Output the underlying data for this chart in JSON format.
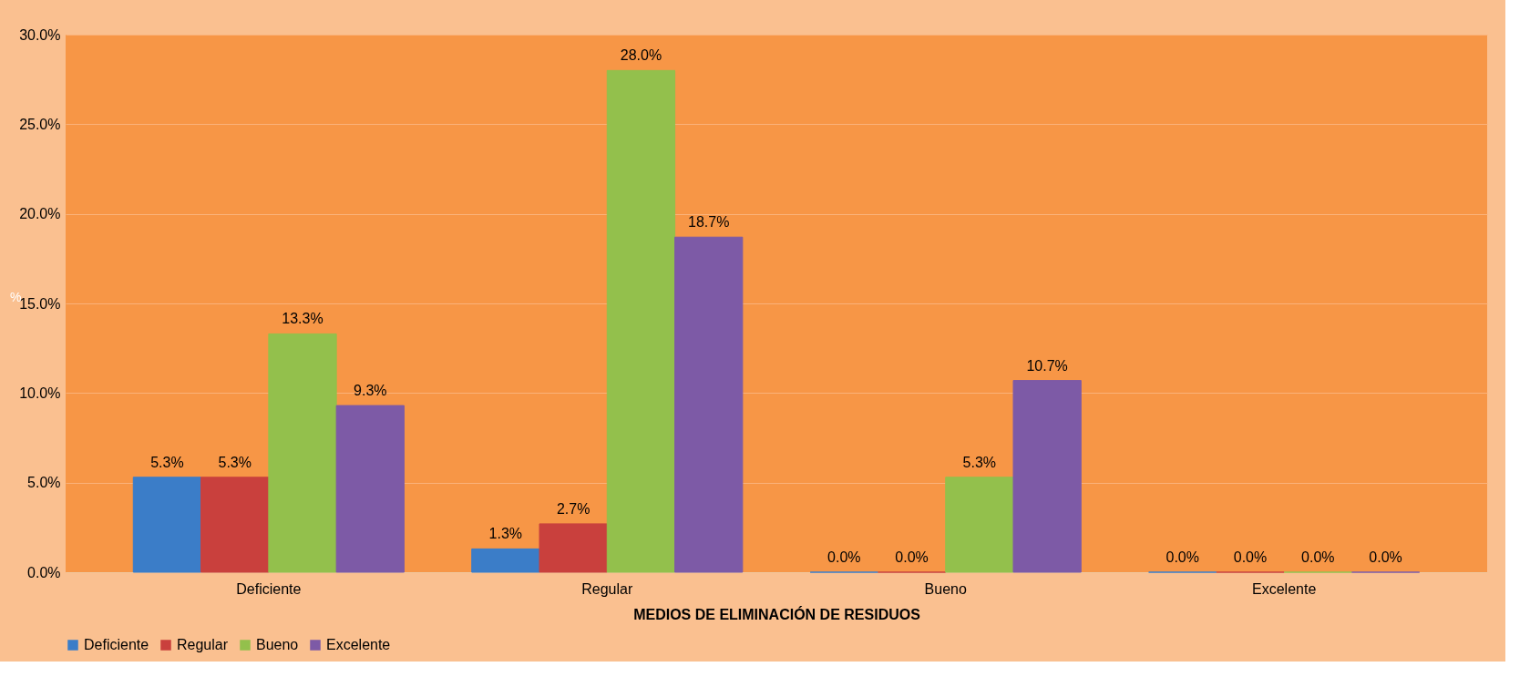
{
  "chart_data": {
    "type": "bar",
    "xlabel": "MEDIOS DE ELIMINACIÓN DE RESIDUOS",
    "ylabel": "%",
    "categories": [
      "Deficiente",
      "Regular",
      "Bueno",
      "Excelente"
    ],
    "series": [
      {
        "name": "Deficiente",
        "color": "#3b7dc8",
        "values": [
          5.3,
          1.3,
          0.0,
          0.0
        ],
        "value_labels": [
          "5.3%",
          "1.3%",
          "0.0%",
          "0.0%"
        ]
      },
      {
        "name": "Regular",
        "color": "#c9403d",
        "values": [
          5.3,
          2.7,
          0.0,
          0.0
        ],
        "value_labels": [
          "5.3%",
          "2.7%",
          "0.0%",
          "0.0%"
        ]
      },
      {
        "name": "Bueno",
        "color": "#93c04c",
        "values": [
          13.3,
          28.0,
          5.3,
          0.0
        ],
        "value_labels": [
          "13.3%",
          "28.0%",
          "5.3%",
          "0.0%"
        ]
      },
      {
        "name": "Excelente",
        "color": "#7d5aa6",
        "values": [
          9.3,
          18.7,
          10.7,
          0.0
        ],
        "value_labels": [
          "9.3%",
          "18.7%",
          "10.7%",
          "0.0%"
        ]
      }
    ],
    "ylim": [
      0,
      30
    ],
    "yticks": [
      {
        "value": 0,
        "label": "0.0%"
      },
      {
        "value": 5,
        "label": "5.0%"
      },
      {
        "value": 10,
        "label": "10.0%"
      },
      {
        "value": 15,
        "label": "15.0%"
      },
      {
        "value": 20,
        "label": "20.0%"
      },
      {
        "value": 25,
        "label": "25.0%"
      },
      {
        "value": 30,
        "label": "30.0%"
      }
    ],
    "grid": "y",
    "legend": "bottom"
  }
}
